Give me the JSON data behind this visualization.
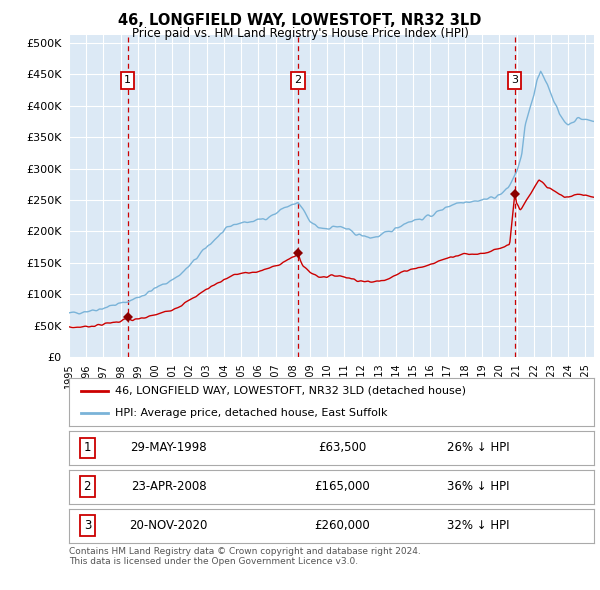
{
  "title": "46, LONGFIELD WAY, LOWESTOFT, NR32 3LD",
  "subtitle": "Price paid vs. HM Land Registry's House Price Index (HPI)",
  "ytick_values": [
    0,
    50000,
    100000,
    150000,
    200000,
    250000,
    300000,
    350000,
    400000,
    450000,
    500000
  ],
  "ylim": [
    0,
    512000
  ],
  "xlim_start": 1995.0,
  "xlim_end": 2025.5,
  "plot_bg_color": "#dce9f5",
  "grid_color": "#ffffff",
  "sale_dates": [
    1998.41,
    2008.31,
    2020.9
  ],
  "sale_prices": [
    63500,
    165000,
    260000
  ],
  "sale_labels": [
    "1",
    "2",
    "3"
  ],
  "vline_color": "#cc0000",
  "sale_marker_color": "#8b0000",
  "hpi_line_color": "#7ab3d8",
  "price_line_color": "#cc0000",
  "legend_label_price": "46, LONGFIELD WAY, LOWESTOFT, NR32 3LD (detached house)",
  "legend_label_hpi": "HPI: Average price, detached house, East Suffolk",
  "table_rows": [
    {
      "label": "1",
      "date": "29-MAY-1998",
      "price": "£63,500",
      "change": "26% ↓ HPI"
    },
    {
      "label": "2",
      "date": "23-APR-2008",
      "price": "£165,000",
      "change": "36% ↓ HPI"
    },
    {
      "label": "3",
      "date": "20-NOV-2020",
      "price": "£260,000",
      "change": "32% ↓ HPI"
    }
  ],
  "footnote": "Contains HM Land Registry data © Crown copyright and database right 2024.\nThis data is licensed under the Open Government Licence v3.0."
}
